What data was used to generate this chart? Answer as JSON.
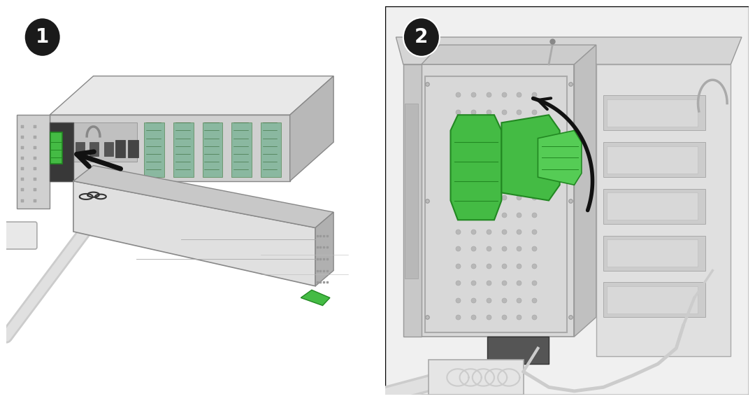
{
  "fig_width": 10.8,
  "fig_height": 5.73,
  "dpi": 100,
  "bg_color": "#ffffff",
  "border_color": "#1a1a1a",
  "panel_bg": "#f5f5f5",
  "chassis_light": "#e8e8e8",
  "chassis_mid": "#d0d0d0",
  "chassis_dark": "#b8b8b8",
  "chassis_edge": "#888888",
  "psu_light": "#e0e0e0",
  "psu_mid": "#c8c8c8",
  "psu_dark": "#b0b0b0",
  "slot_bg": "#505050",
  "slot_inner": "#2a2a2a",
  "green": "#44bb44",
  "green_dark": "#228822",
  "arrow_black": "#111111",
  "cable_light": "#d0d0d0",
  "cable_mid": "#b8b8b8",
  "vent_color": "#999999",
  "pcb_green": "#6aaa6a",
  "white": "#ffffff",
  "label_circle": "#1a1a1a",
  "label_text": "#ffffff"
}
